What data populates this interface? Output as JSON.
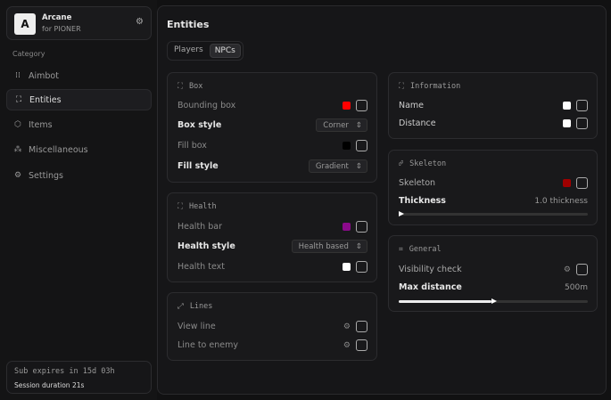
{
  "app": {
    "name": "Arcane",
    "subtitle": "for PIONER",
    "logo_letter": "A"
  },
  "sidebar": {
    "category_label": "Category",
    "items": [
      {
        "label": "Aimbot",
        "icon": "crosshair-icon"
      },
      {
        "label": "Entities",
        "icon": "entities-icon",
        "active": true
      },
      {
        "label": "Items",
        "icon": "box-icon"
      },
      {
        "label": "Miscellaneous",
        "icon": "grid-icon"
      },
      {
        "label": "Settings",
        "icon": "gear-icon"
      }
    ],
    "footer": {
      "sub": "Sub expires in 15d 03h",
      "session": "Session duration 21s"
    }
  },
  "main": {
    "title": "Entities",
    "tabs": [
      {
        "label": "Players"
      },
      {
        "label": "NPCs",
        "active": true
      }
    ]
  },
  "box": {
    "title": "Box",
    "bounding": "Bounding box",
    "bounding_color": "#ff0000",
    "box_style": "Box style",
    "box_style_value": "Corner",
    "fill_box": "Fill box",
    "fill_color": "#000000",
    "fill_style": "Fill style",
    "fill_style_value": "Gradient"
  },
  "health": {
    "title": "Health",
    "bar": "Health bar",
    "bar_color": "#8b0a8b",
    "style": "Health style",
    "style_value": "Health based",
    "text": "Health text",
    "text_color": "#ffffff"
  },
  "lines": {
    "title": "Lines",
    "view": "View line",
    "enemy": "Line to enemy"
  },
  "info": {
    "title": "Information",
    "name": "Name",
    "name_color": "#ffffff",
    "distance": "Distance",
    "distance_color": "#ffffff"
  },
  "skeleton": {
    "title": "Skeleton",
    "label": "Skeleton",
    "color": "#a00000",
    "thickness": "Thickness",
    "thickness_value": "1.0 thickness",
    "thickness_fraction": 0.0
  },
  "general": {
    "title": "General",
    "visibility": "Visibility check",
    "max": "Max distance",
    "max_value": "500m",
    "max_fraction": 0.49
  }
}
